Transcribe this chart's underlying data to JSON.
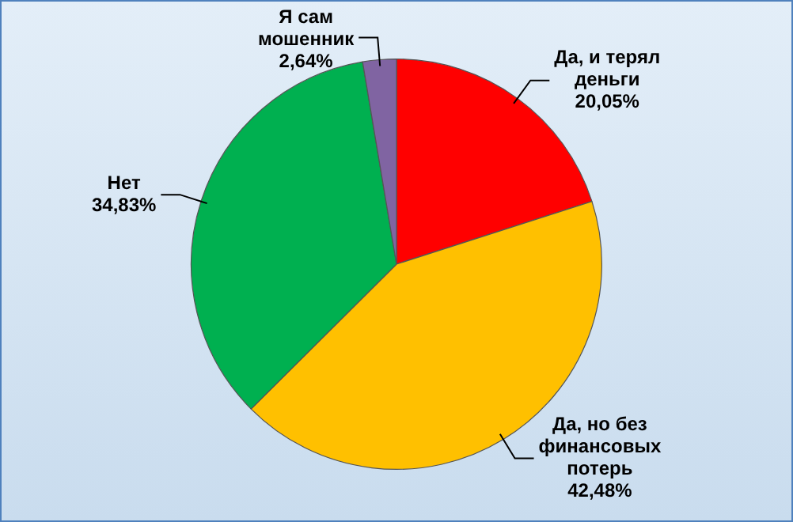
{
  "chart_data": {
    "type": "pie",
    "categories": [
      "Да, и терял\nденьги",
      "Да, но без\nфинансовых\nпотерь",
      "Нет",
      "Я сам\nмошенник"
    ],
    "values": [
      20.05,
      42.48,
      34.83,
      2.64
    ],
    "value_labels": [
      "20,05%",
      "42,48%",
      "34,83%",
      "2,64%"
    ],
    "colors": [
      "#ff0000",
      "#ffc000",
      "#00b050",
      "#8064a2"
    ],
    "legend": false
  }
}
